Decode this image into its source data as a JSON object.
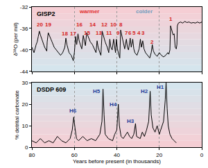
{
  "chart_data": [
    {
      "type": "line",
      "title": "GISP2",
      "y_label": "δ¹⁸O (per mil)",
      "color": "#000000",
      "x": [
        80,
        79,
        78,
        77.5,
        77,
        76.5,
        76,
        75,
        74,
        73,
        72.8,
        72.3,
        71.5,
        70.5,
        69.5,
        68.5,
        67.5,
        66.5,
        65.5,
        64.5,
        64,
        63.5,
        62.5,
        61.5,
        60.5,
        60,
        59.4,
        58.9,
        58.3,
        57.8,
        57.2,
        56.5,
        55.8,
        55.3,
        54.8,
        54.2,
        53.5,
        53,
        52.5,
        51.5,
        50.5,
        49.8,
        49.3,
        48.8,
        48,
        47.5,
        46.9,
        46.3,
        45.5,
        44.5,
        43.8,
        43.3,
        42.8,
        42.2,
        41.5,
        41,
        40.6,
        40.2,
        39.7,
        39,
        38.6,
        38.2,
        37.6,
        37,
        36.3,
        35.5,
        35,
        34.5,
        33.7,
        33.2,
        32.5,
        32,
        31.5,
        30.5,
        30,
        29.5,
        28.9,
        28.4,
        27.8,
        27.2,
        26.5,
        25.5,
        24.5,
        23.8,
        23.3,
        22.8,
        22,
        21,
        20,
        19,
        18,
        17,
        16,
        15.5,
        15,
        14.7,
        14,
        13.5,
        13,
        12.8,
        12.5,
        12,
        11.7,
        11.5,
        11,
        10,
        9,
        8,
        7,
        6,
        5,
        4,
        3,
        2,
        1,
        0
      ],
      "values": [
        -39.5,
        -40.5,
        -39,
        -38.5,
        -37.5,
        -36.5,
        -37.2,
        -38.5,
        -39.5,
        -40.2,
        -38.5,
        -36.8,
        -37.5,
        -38.5,
        -39.5,
        -40,
        -40.5,
        -41,
        -40.5,
        -39.5,
        -37.8,
        -39,
        -40.5,
        -41,
        -42,
        -40.5,
        -37.5,
        -39,
        -37,
        -38.2,
        -39,
        -39.8,
        -37.3,
        -38.5,
        -39.2,
        -36.8,
        -37.5,
        -38,
        -38.5,
        -39,
        -40,
        -40.5,
        -38.3,
        -39.5,
        -40.5,
        -41,
        -36.5,
        -37.5,
        -38.5,
        -39.5,
        -40.5,
        -38,
        -39.5,
        -40,
        -38,
        -39.5,
        -40.5,
        -38,
        -39.8,
        -41,
        -41.5,
        -36.3,
        -37.5,
        -38.5,
        -39.8,
        -38,
        -39.5,
        -40,
        -37.8,
        -39.5,
        -38,
        -39.8,
        -40.5,
        -41,
        -40.5,
        -39.8,
        -38,
        -39.5,
        -38.3,
        -39.8,
        -40.5,
        -41,
        -41.5,
        -40.5,
        -39,
        -40.2,
        -40.8,
        -41.2,
        -40.5,
        -41,
        -41.3,
        -41,
        -40.5,
        -40.8,
        -40,
        -35.5,
        -36.5,
        -37.2,
        -37,
        -38,
        -39.5,
        -39.8,
        -39,
        -35.5,
        -35,
        -34.8,
        -35,
        -34.7,
        -34.9,
        -34.8,
        -35,
        -34.9,
        -35,
        -34.8,
        -35,
        -34.8
      ],
      "xlim": [
        80,
        0
      ],
      "xticks": [
        0,
        20,
        40,
        60,
        80
      ],
      "ylim": [
        -44,
        -32
      ],
      "yticks": [
        -44,
        -40,
        -36,
        -32
      ],
      "grid": "x",
      "tick_labels": "y",
      "annotations": [
        {
          "text": "warmer",
          "x": 53,
          "y": -32.9,
          "color": "#e03030"
        },
        {
          "text": "colder",
          "x": 27,
          "y": -32.9,
          "color": "#6f9fc0"
        },
        {
          "text": "20",
          "x": 76.4,
          "y": -35.3,
          "color": "#d62020"
        },
        {
          "text": "19",
          "x": 72.3,
          "y": -35.3,
          "color": "#d62020"
        },
        {
          "text": "18",
          "x": 64.5,
          "y": -37,
          "color": "#d62020"
        },
        {
          "text": "17",
          "x": 60.5,
          "y": -37,
          "color": "#d62020"
        },
        {
          "text": "16",
          "x": 57.5,
          "y": -35.3,
          "color": "#d62020"
        },
        {
          "text": "15",
          "x": 54,
          "y": -36.8,
          "color": "#d62020"
        },
        {
          "text": "14",
          "x": 51.5,
          "y": -35.3,
          "color": "#d62020"
        },
        {
          "text": "13",
          "x": 48.5,
          "y": -36.8,
          "color": "#d62020"
        },
        {
          "text": "12",
          "x": 46,
          "y": -35.3,
          "color": "#d62020"
        },
        {
          "text": "11",
          "x": 43.5,
          "y": -36.8,
          "color": "#d62020"
        },
        {
          "text": "10",
          "x": 41.5,
          "y": -35.3,
          "color": "#d62020"
        },
        {
          "text": "9",
          "x": 39.5,
          "y": -36.8,
          "color": "#d62020"
        },
        {
          "text": "8",
          "x": 38,
          "y": -35.3,
          "color": "#d62020"
        },
        {
          "text": "7",
          "x": 35.5,
          "y": -36.8,
          "color": "#d62020"
        },
        {
          "text": "6",
          "x": 33.7,
          "y": -36.8,
          "color": "#d62020"
        },
        {
          "text": "5",
          "x": 32,
          "y": -36.8,
          "color": "#d62020"
        },
        {
          "text": "4",
          "x": 29.5,
          "y": -36.8,
          "color": "#d62020"
        },
        {
          "text": "3",
          "x": 27.5,
          "y": -36.8,
          "color": "#d62020"
        },
        {
          "text": "2",
          "x": 23.3,
          "y": -38.5,
          "color": "#d62020"
        },
        {
          "text": "1",
          "x": 14.5,
          "y": -34.2,
          "color": "#d62020"
        }
      ]
    },
    {
      "type": "line",
      "title": "DSDP 609",
      "y_label": "% detrital carbonate",
      "x_label": "Years before present (in thousands)",
      "color": "#000000",
      "x": [
        80,
        78,
        76,
        74,
        72,
        70,
        68,
        66,
        64,
        62,
        61,
        60.3,
        59.7,
        59,
        58,
        56,
        54,
        52,
        50,
        48,
        47,
        46.5,
        46,
        45.5,
        44,
        42,
        41,
        40,
        39.3,
        38.8,
        38,
        37,
        35,
        34,
        33,
        32,
        31.2,
        30.7,
        29,
        28,
        27,
        26,
        25,
        24.3,
        23.8,
        23,
        22,
        21,
        20,
        19,
        18,
        17.2,
        16.8,
        16.3,
        15.8,
        15,
        14,
        13,
        12
      ],
      "values": [
        3,
        2,
        4,
        2,
        3,
        2,
        5,
        3,
        2,
        4,
        8,
        14,
        9,
        4,
        3,
        5,
        3,
        4,
        3,
        6,
        12,
        27,
        15,
        6,
        4,
        3,
        6,
        8,
        20,
        10,
        5,
        4,
        7,
        5,
        4,
        6,
        11,
        5,
        4,
        7,
        5,
        8,
        12,
        26,
        15,
        9,
        7,
        10,
        6,
        9,
        12,
        22,
        30,
        18,
        10,
        6,
        4,
        3,
        2
      ],
      "xlim": [
        80,
        0
      ],
      "xticks": [
        0,
        20,
        40,
        60,
        80
      ],
      "ylim": [
        0,
        30
      ],
      "yticks": [
        0,
        10,
        20,
        30
      ],
      "grid": "x",
      "annotations": [
        {
          "text": "H6",
          "x": 60.5,
          "y": 17,
          "color": "#1f3c99"
        },
        {
          "text": "H5",
          "x": 49.5,
          "y": 26,
          "color": "#1f3c99"
        },
        {
          "text": "H4",
          "x": 41.5,
          "y": 20,
          "color": "#1f3c99"
        },
        {
          "text": "H3",
          "x": 33.5,
          "y": 12,
          "color": "#1f3c99"
        },
        {
          "text": "H2",
          "x": 27,
          "y": 26,
          "color": "#1f3c99"
        },
        {
          "text": "H1",
          "x": 19.5,
          "y": 28,
          "color": "#1f3c99"
        }
      ]
    }
  ]
}
